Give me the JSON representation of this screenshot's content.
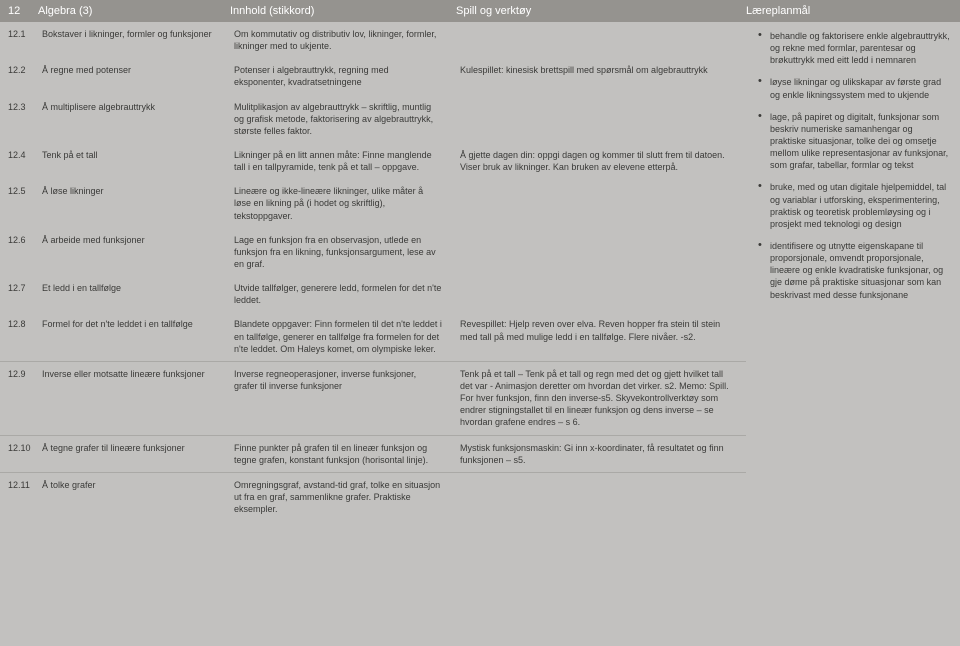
{
  "header": {
    "chapter_num": "12",
    "chapter_title": "Algebra (3)",
    "col_innhold": "Innhold (stikkord)",
    "col_spill": "Spill og verktøy",
    "col_goal": "Læreplanmål"
  },
  "rows": [
    {
      "num": "12.1",
      "stik": "Bokstaver i likninger, formler og funksjoner",
      "inn": "Om kommutativ og distributiv lov, likninger, formler, likninger med to ukjente.",
      "spv": ""
    },
    {
      "num": "12.2",
      "stik": "Å regne med potenser",
      "inn": "Potenser i algebrauttrykk, regning med eksponenter, kvadratsetningene",
      "spv": "Kulespillet: kinesisk brettspill med spørsmål om algebrauttrykk"
    },
    {
      "num": "12.3",
      "stik": "Å multiplisere algebrauttrykk",
      "inn": "Mulitplikasjon av algebrauttrykk – skriftlig, muntlig og grafisk metode, faktorisering av algebrauttrykk, største felles faktor.",
      "spv": ""
    },
    {
      "num": "12.4",
      "stik": "Tenk på et tall",
      "inn": "Likninger på en litt annen måte: Finne manglende tall i en tallpyramide, tenk på et tall – oppgave.",
      "spv": "Å gjette dagen din: oppgi dagen og kommer til slutt frem til datoen. Viser bruk av likninger. Kan bruken av elevene etterpå."
    },
    {
      "num": "12.5",
      "stik": "Å løse likninger",
      "inn": "Lineære og ikke-lineære likninger, ulike måter å løse en likning på (i hodet og skriftlig), tekstoppgaver.",
      "spv": ""
    },
    {
      "num": "12.6",
      "stik": "Å arbeide med funksjoner",
      "inn": "Lage en funksjon fra en observasjon, utlede en funksjon fra en likning, funksjonsargument, lese av en graf.",
      "spv": ""
    },
    {
      "num": "12.7",
      "stik": "Et ledd i en tallfølge",
      "inn": "Utvide tallfølger, generere ledd, formelen for det n'te leddet.",
      "spv": ""
    },
    {
      "num": "12.8",
      "stik": "Formel for det n'te leddet i en tallfølge",
      "inn": "Blandete oppgaver: Finn formelen til det n'te leddet i en tallfølge, generer en tallfølge fra formelen for det n'te leddet. Om Haleys komet, om olympiske leker.",
      "spv": "Revespillet: Hjelp reven over elva. Reven hopper fra stein til stein med tall på med mulige ledd i en tallfølge. Flere nivåer. -s2."
    },
    {
      "num": "12.9",
      "stik": "Inverse eller motsatte lineære funksjoner",
      "inn": "Inverse regneoperasjoner, inverse funksjoner, grafer til inverse funksjoner",
      "spv": "Tenk på et tall – Tenk på et tall og regn med det og gjett hvilket tall det var - Animasjon deretter om hvordan det virker. s2. Memo: Spill. For hver funksjon, finn den inverse-s5. Skyvekontrollverktøy som endrer stigningstallet til en lineær funksjon og dens inverse – se hvordan grafene endres – s 6."
    },
    {
      "num": "12.10",
      "stik": "Å tegne grafer til lineære funksjoner",
      "inn": "Finne punkter på grafen til en lineær funksjon og tegne grafen,  konstant funksjon (horisontal linje).",
      "spv": "Mystisk funksjonsmaskin: Gi inn x-koordinater, få resultatet og finn funksjonen – s5."
    },
    {
      "num": "12.11",
      "stik": "Å tolke grafer",
      "inn": "Omregningsgraf, avstand-tid graf, tolke en situasjon ut fra en graf, sammenlikne grafer. Praktiske eksempler.",
      "spv": ""
    }
  ],
  "sep_before": [
    "12.9",
    "12.10",
    "12.11"
  ],
  "goals": [
    "behandle og faktorisere enkle algebrauttrykk, og rekne med formlar, parentesar og brøkuttrykk med eitt ledd i nemnaren",
    "løyse likningar og ulikskapar av første grad og enkle likningssystem med to ukjende",
    "lage, på papiret og digitalt, funksjonar som beskriv numeriske samanhengar og praktiske situasjonar, tolke dei og omsetje mellom ulike representasjonar av funksjonar, som grafar, tabellar, formlar og tekst",
    "bruke, med og utan digitale hjelpemiddel, tal og variablar i utforsking, eksperimentering, praktisk og teoretisk problemløysing og i prosjekt med teknologi og design",
    "identifisere og utnytte eigenskapane til proporsjonale, omvendt proporsjonale, lineære og enkle kvadratiske funksjonar, og gje døme på praktiske situasjonar som kan beskrivast med desse funksjonane"
  ]
}
